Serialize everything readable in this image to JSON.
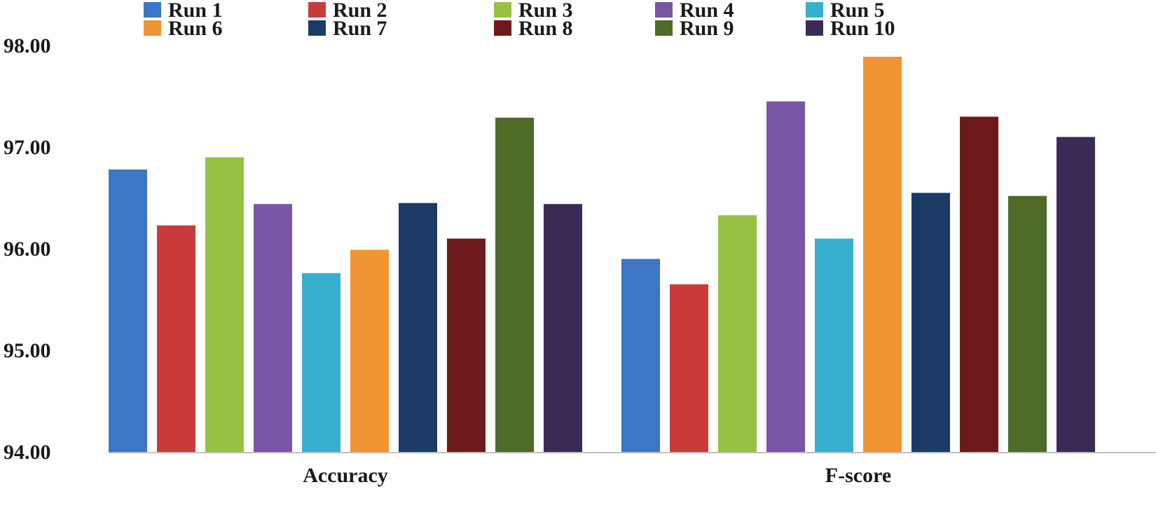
{
  "chart_data": {
    "type": "bar",
    "title": "",
    "xlabel": "",
    "ylabel": "",
    "categories": [
      "Accuracy",
      "F-score"
    ],
    "ylim": [
      94.0,
      98.0
    ],
    "yticks": [
      "94.00",
      "95.00",
      "96.00",
      "97.00",
      "98.00"
    ],
    "grid": false,
    "legend_position": "top",
    "series": [
      {
        "name": "Run 1",
        "color": "#3d76c4",
        "values": [
          96.78,
          95.9
        ]
      },
      {
        "name": "Run 2",
        "color": "#c93b3b",
        "values": [
          96.23,
          95.65
        ]
      },
      {
        "name": "Run 3",
        "color": "#96c143",
        "values": [
          96.9,
          96.33
        ]
      },
      {
        "name": "Run 4",
        "color": "#7a55a6",
        "values": [
          96.44,
          97.45
        ]
      },
      {
        "name": "Run 5",
        "color": "#36b0ce",
        "values": [
          95.76,
          96.1
        ]
      },
      {
        "name": "Run 6",
        "color": "#f09434",
        "values": [
          95.99,
          97.89
        ]
      },
      {
        "name": "Run 7",
        "color": "#1c3a66",
        "values": [
          96.45,
          96.55
        ]
      },
      {
        "name": "Run 8",
        "color": "#6e1a1c",
        "values": [
          96.1,
          97.3
        ]
      },
      {
        "name": "Run 9",
        "color": "#4e6b27",
        "values": [
          97.29,
          96.52
        ]
      },
      {
        "name": "Run 10",
        "color": "#3b2a55",
        "values": [
          96.44,
          97.1
        ]
      }
    ]
  }
}
